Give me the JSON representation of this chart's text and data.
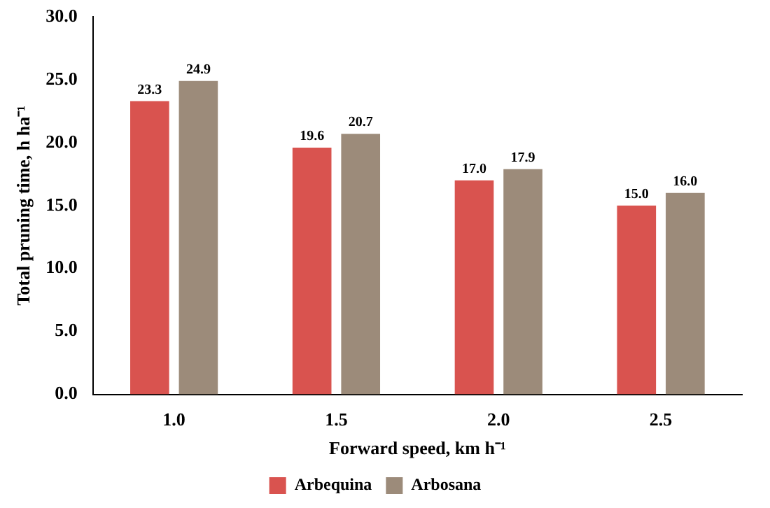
{
  "chart_data": {
    "type": "bar",
    "xlabel": "Forward speed, km h⁻¹",
    "ylabel": "Total pruning time, h ha⁻¹",
    "categories": [
      "1.0",
      "1.5",
      "2.0",
      "2.5"
    ],
    "series": [
      {
        "name": "Arbequina",
        "color": "#d9534f",
        "values": [
          23.3,
          19.6,
          17.0,
          15.0
        ],
        "value_labels": [
          "23.3",
          "19.6",
          "17.0",
          "15.0"
        ]
      },
      {
        "name": "Arbosana",
        "color": "#9c8b7a",
        "values": [
          24.9,
          20.7,
          17.9,
          16.0
        ],
        "value_labels": [
          "24.9",
          "20.7",
          "17.9",
          "16.0"
        ]
      }
    ],
    "ylim": [
      0,
      30
    ],
    "yticks": [
      {
        "value": 0,
        "label": "0.0"
      },
      {
        "value": 5,
        "label": "5.0"
      },
      {
        "value": 10,
        "label": "10.0"
      },
      {
        "value": 15,
        "label": "15.0"
      },
      {
        "value": 20,
        "label": "20.0"
      },
      {
        "value": 25,
        "label": "25.0"
      },
      {
        "value": 30,
        "label": "30.0"
      }
    ],
    "grid": false,
    "legend": "bottom"
  }
}
